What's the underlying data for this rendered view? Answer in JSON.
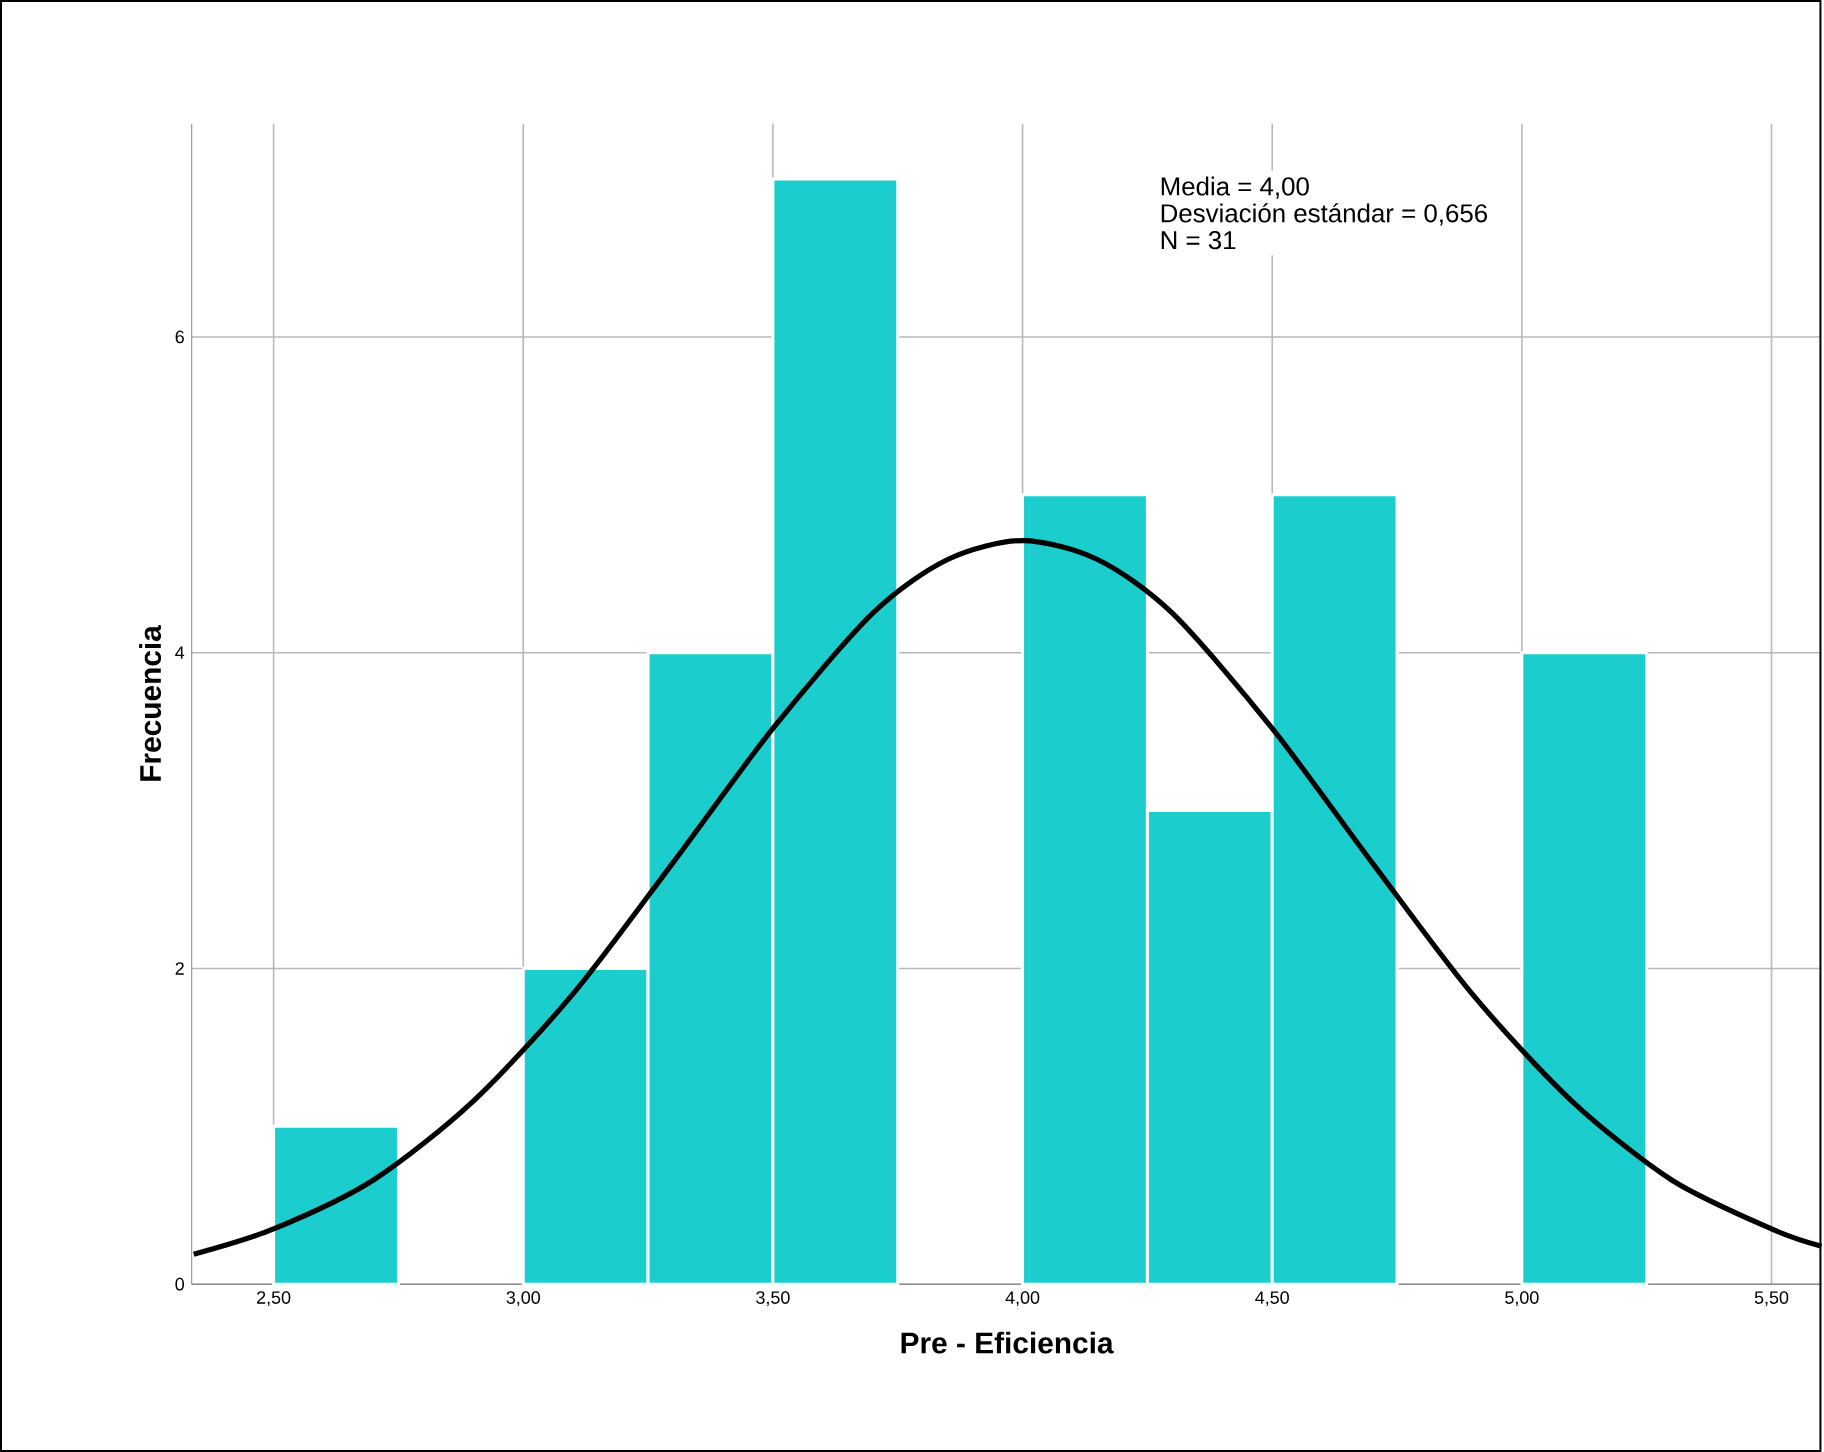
{
  "chart_data": {
    "type": "histogram",
    "xlabel": "Pre - Eficiencia",
    "ylabel": "Frecuencia",
    "bins": [
      2.5,
      2.75,
      3.0,
      3.25,
      3.5,
      3.75,
      4.0,
      4.25,
      4.5,
      4.75,
      5.0,
      5.25
    ],
    "values": [
      1,
      0,
      2,
      4,
      7,
      0,
      5,
      3,
      5,
      0,
      4
    ],
    "color": "#1ccdcd",
    "series": [
      {
        "type": "line",
        "color": "#000000",
        "x": [
          2.34,
          2.5,
          2.7,
          2.9,
          3.1,
          3.3,
          3.5,
          3.7,
          3.85,
          4.0,
          4.15,
          4.3,
          4.5,
          4.7,
          4.9,
          5.1,
          5.3,
          5.5,
          5.6
        ],
        "values": [
          0.19,
          0.35,
          0.66,
          1.16,
          1.84,
          2.67,
          3.52,
          4.25,
          4.59,
          4.71,
          4.59,
          4.25,
          3.52,
          2.67,
          1.84,
          1.16,
          0.66,
          0.35,
          0.24
        ]
      }
    ],
    "annotations": [
      "Media = 4,00",
      "Desviación estándar = 0,656",
      "N = 31"
    ],
    "xlim": [
      2.336,
      5.6
    ],
    "ylim": [
      0,
      7.35
    ],
    "xticks": [
      {
        "value": 2.5,
        "label": "2,50"
      },
      {
        "value": 3.0,
        "label": "3,00"
      },
      {
        "value": 3.5,
        "label": "3,50"
      },
      {
        "value": 4.0,
        "label": "4,00"
      },
      {
        "value": 4.5,
        "label": "4,50"
      },
      {
        "value": 5.0,
        "label": "5,00"
      },
      {
        "value": 5.5,
        "label": "5,50"
      }
    ],
    "yticks": [
      0,
      2,
      4,
      6
    ],
    "grid": true
  }
}
